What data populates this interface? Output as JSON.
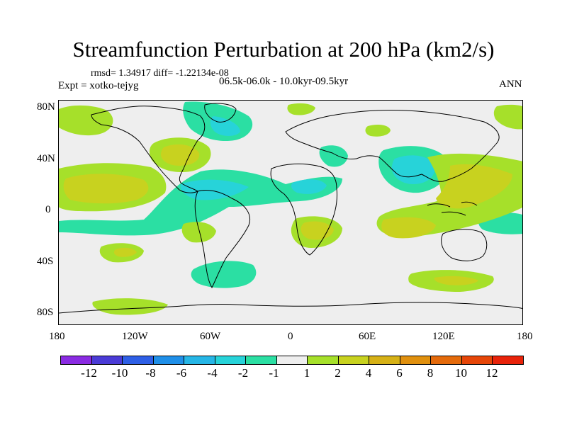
{
  "title": "Streamfunction Perturbation at 200 hPa (km2/s)",
  "stats": "rmsd= 1.34917 diff= -1.22134e-08",
  "expt": "Expt = xotko-tejyg",
  "period": "06.5k-06.0k - 10.0kyr-09.5kyr",
  "season": "ANN",
  "y_ticks": [
    "80N",
    "40N",
    "0",
    "40S",
    "80S"
  ],
  "x_ticks": [
    "180",
    "120W",
    "60W",
    "0",
    "60E",
    "120E",
    "180"
  ],
  "colorbar": {
    "colors": [
      "#8a2be2",
      "#4a3bd6",
      "#2e5fe6",
      "#1f8fe8",
      "#26b6e6",
      "#27d3d9",
      "#2bdfa3",
      "#eeeeee",
      "#a6e02a",
      "#c8d21f",
      "#d6b116",
      "#e0900e",
      "#e46a0b",
      "#e64608",
      "#e8230a"
    ],
    "labels": [
      "-12",
      "-10",
      "-8",
      "-6",
      "-4",
      "-2",
      "-1",
      "1",
      "2",
      "4",
      "6",
      "8",
      "10",
      "12"
    ]
  },
  "palette": {
    "ocean": "#eeeeee",
    "green": "#a6e02a",
    "olive": "#c8d21f",
    "orange": "#d6b116",
    "teal": "#2bdfa3",
    "cyan": "#27d3d9"
  }
}
